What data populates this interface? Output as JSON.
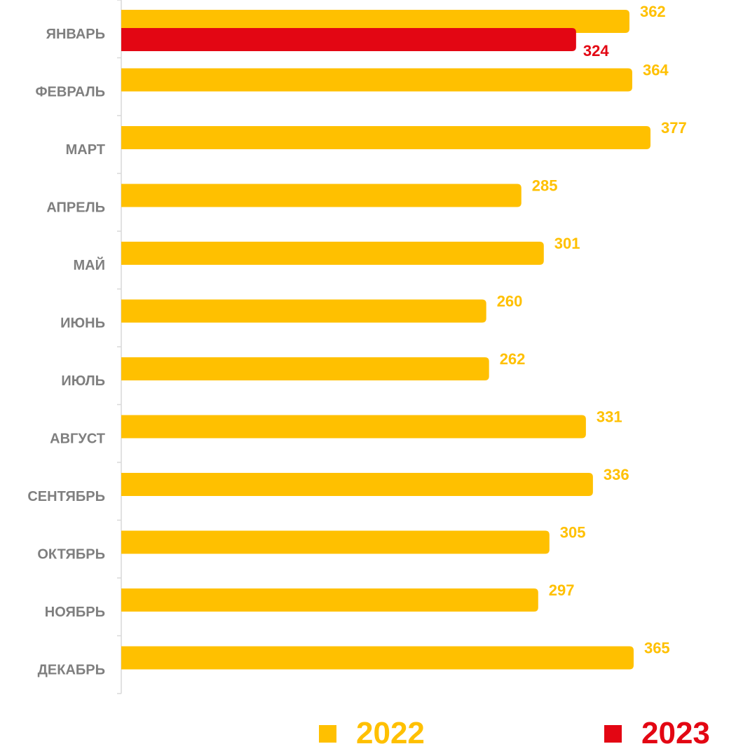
{
  "colors": {
    "series_2022": "#FFC000",
    "series_2023": "#E30613",
    "axis": "#d9d9d9",
    "category_text": "#7f7f7f"
  },
  "chart_data": {
    "type": "bar",
    "orientation": "horizontal",
    "categories": [
      "ЯНВАРЬ",
      "ФЕВРАЛЬ",
      "МАРТ",
      "АПРЕЛЬ",
      "МАЙ",
      "ИЮНЬ",
      "ИЮЛЬ",
      "АВГУСТ",
      "СЕНТЯБРЬ",
      "ОКТЯБРЬ",
      "НОЯБРЬ",
      "ДЕКАБРЬ"
    ],
    "series": [
      {
        "name": "2022",
        "color": "#FFC000",
        "values": [
          362,
          364,
          377,
          285,
          301,
          260,
          262,
          331,
          336,
          305,
          297,
          365
        ]
      },
      {
        "name": "2023",
        "color": "#E30613",
        "values": [
          324,
          null,
          null,
          null,
          null,
          null,
          null,
          null,
          null,
          null,
          null,
          null
        ]
      }
    ],
    "xlim": [
      0,
      400
    ],
    "grid": false,
    "legend_position": "bottom",
    "data_labels": true
  },
  "legend": {
    "items": [
      {
        "label": "2022",
        "color": "#FFC000"
      },
      {
        "label": "2023",
        "color": "#E30613"
      }
    ]
  }
}
